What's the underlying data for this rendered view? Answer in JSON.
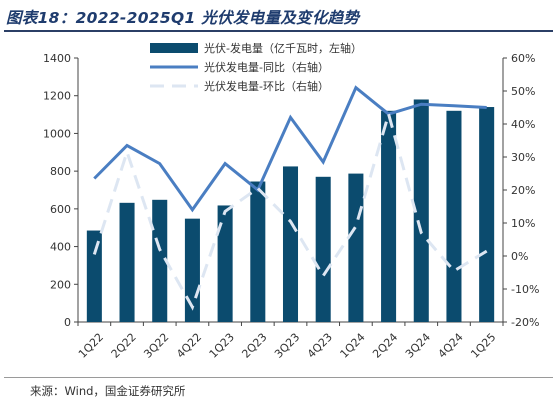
{
  "figure_title": "图表18：2022-2025Q1 光伏发电量及变化趋势",
  "source_note": "来源：Wind，国金证券研究所",
  "chart_data": {
    "type": "bar",
    "categories": [
      "1Q22",
      "2Q22",
      "3Q22",
      "4Q22",
      "1Q23",
      "2Q23",
      "3Q23",
      "4Q23",
      "1Q24",
      "2Q24",
      "3Q24",
      "4Q24",
      "1Q25"
    ],
    "series": [
      {
        "name": "光伏-发电量（亿千瓦时，左轴）",
        "kind": "bar",
        "axis": "left",
        "color": "#0b4b6e",
        "values": [
          485,
          632,
          648,
          548,
          618,
          745,
          825,
          770,
          787,
          1120,
          1180,
          1120,
          1140
        ]
      },
      {
        "name": "光伏发电量-同比（右轴）",
        "kind": "line",
        "axis": "right",
        "color": "#4a7ec2",
        "values": [
          23.5,
          33.5,
          28.0,
          14.0,
          28.0,
          20.0,
          42.0,
          28.5,
          51.0,
          43.0,
          46.0,
          45.5,
          45.0
        ]
      },
      {
        "name": "光伏发电量-环比（右轴）",
        "kind": "dashed-line",
        "axis": "right",
        "color": "#dde6f2",
        "values": [
          0.5,
          31.5,
          2.0,
          -15.5,
          13.5,
          20.5,
          10.5,
          -6.0,
          9.0,
          43.0,
          7.0,
          -4.5,
          1.5
        ]
      }
    ],
    "y_left": {
      "min": 0,
      "max": 1400,
      "ticks": [
        "0",
        "200",
        "400",
        "600",
        "800",
        "1000",
        "1200",
        "1400"
      ]
    },
    "y_right": {
      "min": -20,
      "max": 60,
      "ticks": [
        "-20%",
        "-10%",
        "0%",
        "10%",
        "20%",
        "30%",
        "40%",
        "50%",
        "60%"
      ]
    },
    "legend_position": "top-center",
    "gridlines": false
  }
}
